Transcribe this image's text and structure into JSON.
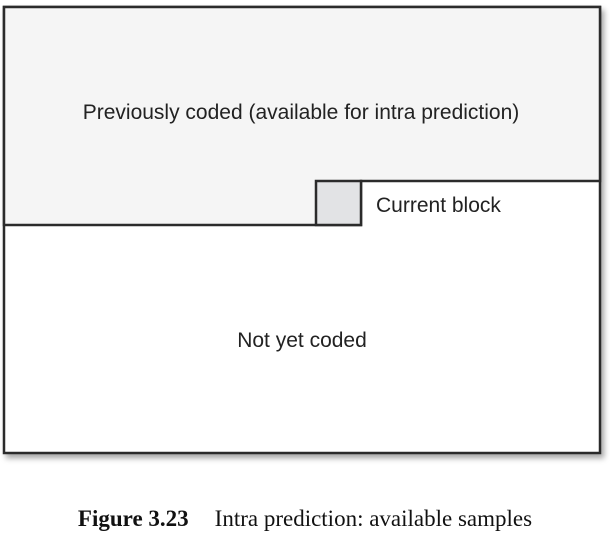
{
  "diagram": {
    "previously_coded_label": "Previously coded (available for intra prediction)",
    "current_block_label": "Current block",
    "not_yet_coded_label": "Not yet coded",
    "colors": {
      "previously_coded_fill": "#f5f5f5",
      "current_block_fill": "#e2e3e5",
      "not_yet_coded_fill": "#ffffff",
      "stroke": "#2b2b2b"
    }
  },
  "caption": {
    "figure_number": "Figure 3.23",
    "text": "Intra prediction: available samples"
  }
}
